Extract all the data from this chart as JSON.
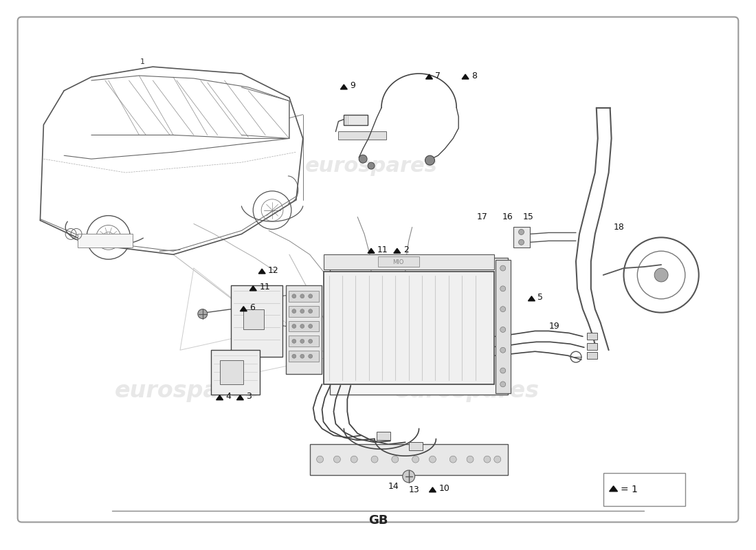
{
  "title": "GB",
  "background_color": "#ffffff",
  "border_color": "#999999",
  "watermark_text": "eurospares",
  "legend_text": "▲ = 1",
  "line_color": "#444444",
  "light_line": "#888888",
  "label_color": "#111111",
  "watermark_color": "#cccccc",
  "watermark_alpha": 0.45,
  "watermark_fontsize": 24,
  "label_fontsize": 9,
  "title_fontsize": 13,
  "fig_width": 11.0,
  "fig_height": 8.0,
  "dpi": 100
}
